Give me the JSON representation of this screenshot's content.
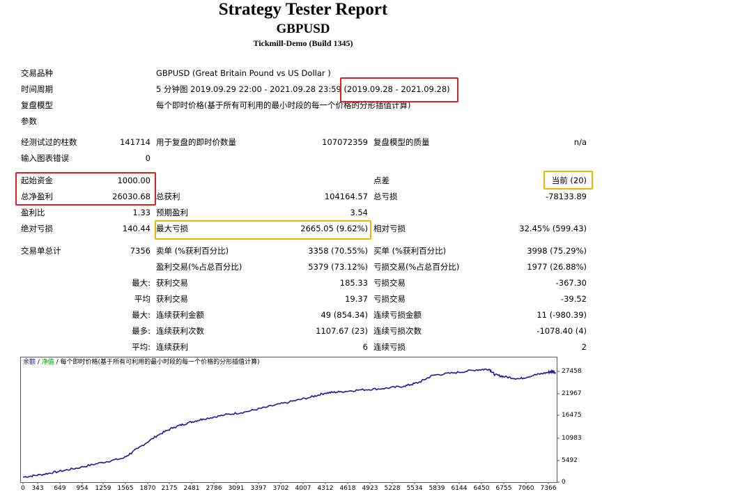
{
  "report": {
    "title": "Strategy Tester Report",
    "symbol": "GBPUSD",
    "server": "Tickmill-Demo (Build 1345)"
  },
  "settings": {
    "symbol_label": "交易品种",
    "symbol_value": "GBPUSD (Great Britain Pound vs US Dollar )",
    "period_label": "时间周期",
    "period_value": "5 分钟图 2019.09.29 22:00 - 2021.09.28 23:59 (2019.09.28 - 2021.09.28)",
    "model_label": "复盘模型",
    "model_value": "每个即时价格(基于所有可利用的最小时段的每一个价格的分形插值计算)",
    "params_label": "参数"
  },
  "stats": {
    "bars_label": "经测试过的柱数",
    "bars_value": "141714",
    "ticks_label": "用于复盘的即时价数量",
    "ticks_value": "107072359",
    "quality_label": "复盘模型的质量",
    "quality_value": "n/a",
    "errors_label": "输入图表错误",
    "errors_value": "0",
    "deposit_label": "起始资金",
    "deposit_value": "1000.00",
    "spread_label": "点差",
    "spread_value": "当前 (20)",
    "net_label": "总净盈利",
    "net_value": "26030.68",
    "gross_profit_label": "总获利",
    "gross_profit_value": "104164.57",
    "gross_loss_label": "总亏损",
    "gross_loss_value": "-78133.89",
    "pf_label": "盈利比",
    "pf_value": "1.33",
    "payoff_label": "预期盈利",
    "payoff_value": "3.54",
    "abs_dd_label": "绝对亏损",
    "abs_dd_value": "140.44",
    "max_dd_label": "最大亏损",
    "max_dd_value": "2665.05 (9.62%)",
    "rel_dd_label": "相对亏损",
    "rel_dd_value": "32.45% (599.43)",
    "total_label": "交易单总计",
    "total_value": "7356",
    "short_label": "卖单 (%获利百分比)",
    "short_value": "3358 (70.55%)",
    "long_label": "买单 (%获利百分比)",
    "long_value": "3998 (75.29%)",
    "profit_trades_label": "盈利交易(%占总百分比)",
    "profit_trades_value": "5379 (73.12%)",
    "loss_trades_label": "亏损交易(%占总百分比)",
    "loss_trades_value": "1977 (26.88%)",
    "max_prefix": "最大:",
    "largest_profit_label": "获利交易",
    "largest_profit_value": "185.33",
    "largest_loss_label": "亏损交易",
    "largest_loss_value": "-367.30",
    "avg_prefix": "平均",
    "avg_profit_label": "获利交易",
    "avg_profit_value": "19.37",
    "avg_loss_label": "亏损交易",
    "avg_loss_value": "-39.52",
    "max2_prefix": "最大:",
    "cons_win_amt_label": "连续获利金额",
    "cons_win_amt_value": "49 (854.34)",
    "cons_loss_amt_label": "连续亏损金额",
    "cons_loss_amt_value": "11 (-980.39)",
    "most_prefix": "最多:",
    "cons_win_cnt_label": "连续获利次数",
    "cons_win_cnt_value": "1107.67 (23)",
    "cons_loss_cnt_label": "连续亏损次数",
    "cons_loss_cnt_value": "-1078.40 (4)",
    "avg2_prefix": "平均:",
    "avg_cons_win_label": "连续获利",
    "avg_cons_win_value": "6",
    "avg_cons_loss_label": "连续亏损",
    "avg_cons_loss_value": "2"
  },
  "chart_legend": {
    "balance": "余额",
    "sep1": " / ",
    "equity": "净值",
    "rest": " / 每个即时价格(基于所有可利用的最小时段的每一个价格的分形插值计算)"
  },
  "chart_data": {
    "type": "line",
    "series": [
      {
        "name": "余额",
        "x": [
          0,
          250,
          500,
          800,
          1100,
          1400,
          1600,
          1870,
          2100,
          2300,
          2500,
          2800,
          3100,
          3400,
          3700,
          4000,
          4200,
          4400,
          4700,
          5000,
          5300,
          5500,
          5700,
          6000,
          6300,
          6480,
          6560,
          6700,
          6900,
          7100,
          7300,
          7366,
          7400
        ],
        "y": [
          900,
          1500,
          2300,
          3300,
          4500,
          5600,
          8000,
          11200,
          13200,
          14300,
          15200,
          16200,
          17000,
          18200,
          19400,
          20600,
          21600,
          21900,
          22400,
          22700,
          23300,
          24200,
          26000,
          26600,
          27300,
          27500,
          26100,
          25600,
          25100,
          26000,
          26700,
          27000,
          26500
        ]
      }
    ],
    "color": "#1a1a9a",
    "ylim": [
      0,
      28500
    ],
    "yticks": [
      "27458",
      "21967",
      "16475",
      "10983",
      "5492",
      "0"
    ],
    "xticks": [
      "0",
      "343",
      "649",
      "954",
      "1259",
      "1565",
      "1870",
      "2175",
      "2481",
      "2786",
      "3091",
      "3397",
      "3702",
      "4007",
      "4312",
      "4618",
      "4923",
      "5228",
      "5534",
      "5839",
      "6144",
      "6450",
      "6755",
      "7060",
      "7366"
    ]
  }
}
